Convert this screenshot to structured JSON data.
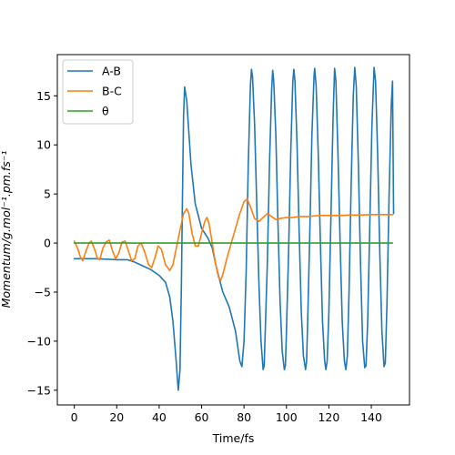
{
  "chart_data": {
    "type": "line",
    "title": "",
    "xlabel": "Time/fs",
    "ylabel": "Momentum/g.mol⁻¹.pm.fs⁻¹",
    "xlim": [
      -8,
      158
    ],
    "ylim": [
      -16.5,
      19.2
    ],
    "xticks": [
      0,
      20,
      40,
      60,
      80,
      100,
      120,
      140
    ],
    "yticks": [
      -15,
      -10,
      -5,
      0,
      5,
      10,
      15
    ],
    "grid": false,
    "legend_position": "top-left",
    "series": [
      {
        "name": "A-B",
        "color": "#1f77b4",
        "points": [
          [
            0,
            -1.6
          ],
          [
            5,
            -1.6
          ],
          [
            10,
            -1.6
          ],
          [
            15,
            -1.65
          ],
          [
            20,
            -1.7
          ],
          [
            25,
            -1.7
          ],
          [
            28,
            -1.9
          ],
          [
            32,
            -2.3
          ],
          [
            36,
            -2.7
          ],
          [
            40,
            -3.3
          ],
          [
            43,
            -4.0
          ],
          [
            45,
            -5.5
          ],
          [
            46.5,
            -8.0
          ],
          [
            48,
            -12.0
          ],
          [
            49,
            -15.0
          ],
          [
            49.8,
            -13.0
          ],
          [
            50.5,
            -4.0
          ],
          [
            51,
            5.0
          ],
          [
            51.5,
            13.0
          ],
          [
            52,
            15.9
          ],
          [
            53,
            14.5
          ],
          [
            55,
            8.0
          ],
          [
            57,
            4.0
          ],
          [
            60,
            1.5
          ],
          [
            63,
            0.5
          ],
          [
            65,
            -0.5
          ],
          [
            67,
            -2.5
          ],
          [
            70,
            -5.0
          ],
          [
            73,
            -6.5
          ],
          [
            76,
            -9.0
          ],
          [
            78,
            -12.0
          ],
          [
            79,
            -12.6
          ],
          [
            80,
            -10.0
          ],
          [
            81,
            -3.0
          ],
          [
            82,
            8.0
          ],
          [
            83,
            16.0
          ],
          [
            83.5,
            17.7
          ],
          [
            84,
            17.0
          ],
          [
            85,
            12.0
          ],
          [
            86,
            4.0
          ],
          [
            87,
            -4.0
          ],
          [
            88,
            -10.0
          ],
          [
            89,
            -12.9
          ],
          [
            89.5,
            -12.5
          ],
          [
            90,
            -9.0
          ],
          [
            91,
            -2.0
          ],
          [
            92,
            8.0
          ],
          [
            93,
            15.5
          ],
          [
            93.5,
            17.6
          ],
          [
            94,
            16.5
          ],
          [
            95,
            11.0
          ],
          [
            96,
            2.0
          ],
          [
            97,
            -6.0
          ],
          [
            98,
            -11.0
          ],
          [
            99,
            -12.9
          ],
          [
            99.5,
            -12.5
          ],
          [
            100,
            -9.0
          ],
          [
            101,
            -1.0
          ],
          [
            102,
            9.0
          ],
          [
            103,
            16.5
          ],
          [
            103.5,
            17.7
          ],
          [
            104,
            16.5
          ],
          [
            105,
            10.0
          ],
          [
            106,
            1.0
          ],
          [
            107,
            -7.0
          ],
          [
            108,
            -11.5
          ],
          [
            109,
            -12.9
          ],
          [
            109.5,
            -12.0
          ],
          [
            110,
            -8.0
          ],
          [
            111,
            1.0
          ],
          [
            112,
            11.0
          ],
          [
            113,
            17.0
          ],
          [
            113.3,
            17.8
          ],
          [
            114,
            16.0
          ],
          [
            115,
            9.0
          ],
          [
            116,
            0.0
          ],
          [
            117,
            -8.0
          ],
          [
            118,
            -12.0
          ],
          [
            118.6,
            -12.9
          ],
          [
            119.2,
            -12.0
          ],
          [
            120,
            -7.0
          ],
          [
            121,
            3.0
          ],
          [
            122,
            13.0
          ],
          [
            122.7,
            17.8
          ],
          [
            123.3,
            16.5
          ],
          [
            124.3,
            9.0
          ],
          [
            125.3,
            0.0
          ],
          [
            126.3,
            -8.0
          ],
          [
            127.3,
            -12.0
          ],
          [
            128,
            -12.9
          ],
          [
            128.7,
            -11.5
          ],
          [
            129.5,
            -5.0
          ],
          [
            130.5,
            6.0
          ],
          [
            131.5,
            15.0
          ],
          [
            132.2,
            17.9
          ],
          [
            132.9,
            16.0
          ],
          [
            133.9,
            8.0
          ],
          [
            134.9,
            -2.0
          ],
          [
            135.9,
            -10.0
          ],
          [
            136.9,
            -12.7
          ],
          [
            137.5,
            -12.5
          ],
          [
            138.3,
            -8.0
          ],
          [
            139.3,
            2.0
          ],
          [
            140.3,
            12.0
          ],
          [
            141.3,
            17.9
          ],
          [
            142,
            16.5
          ],
          [
            143,
            9.0
          ],
          [
            144,
            -1.0
          ],
          [
            145,
            -9.0
          ],
          [
            146,
            -12.6
          ],
          [
            146.6,
            -12.2
          ],
          [
            147.4,
            -6.0
          ],
          [
            148.4,
            5.0
          ],
          [
            149.4,
            14.0
          ],
          [
            150,
            16.5
          ],
          [
            150.5,
            3.0
          ]
        ]
      },
      {
        "name": "B-C",
        "color": "#ff7f0e",
        "points": [
          [
            0,
            0.2
          ],
          [
            1.5,
            -0.5
          ],
          [
            3,
            -1.5
          ],
          [
            4,
            -1.8
          ],
          [
            5.5,
            -0.8
          ],
          [
            7,
            0.0
          ],
          [
            8,
            0.2
          ],
          [
            9.5,
            -0.6
          ],
          [
            11,
            -1.6
          ],
          [
            12,
            -1.7
          ],
          [
            13.5,
            -0.5
          ],
          [
            15,
            0.1
          ],
          [
            16.5,
            0.3
          ],
          [
            18,
            -0.8
          ],
          [
            19.5,
            -1.6
          ],
          [
            21,
            -1.0
          ],
          [
            22.5,
            0.1
          ],
          [
            24,
            0.2
          ],
          [
            25.5,
            -0.8
          ],
          [
            27,
            -1.8
          ],
          [
            28.5,
            -1.6
          ],
          [
            30,
            -0.3
          ],
          [
            31.5,
            0.0
          ],
          [
            33,
            -0.8
          ],
          [
            35,
            -2.2
          ],
          [
            36.5,
            -2.5
          ],
          [
            38,
            -1.5
          ],
          [
            39.5,
            -0.3
          ],
          [
            41,
            -0.6
          ],
          [
            43,
            -2.2
          ],
          [
            45,
            -2.8
          ],
          [
            46.5,
            -2.2
          ],
          [
            48,
            -0.6
          ],
          [
            50,
            1.5
          ],
          [
            51.5,
            3.0
          ],
          [
            53,
            3.5
          ],
          [
            54,
            3.0
          ],
          [
            55.5,
            1.0
          ],
          [
            57,
            -0.3
          ],
          [
            58.5,
            -0.3
          ],
          [
            60,
            1.0
          ],
          [
            61.5,
            2.2
          ],
          [
            62.5,
            2.6
          ],
          [
            63.5,
            2.0
          ],
          [
            65,
            0.0
          ],
          [
            66.5,
            -2.0
          ],
          [
            68,
            -3.5
          ],
          [
            69,
            -3.8
          ],
          [
            70,
            -3.2
          ],
          [
            72,
            -1.5
          ],
          [
            74,
            0.0
          ],
          [
            76,
            1.5
          ],
          [
            78,
            3.0
          ],
          [
            80,
            4.2
          ],
          [
            81.5,
            4.5
          ],
          [
            83,
            3.7
          ],
          [
            85,
            2.5
          ],
          [
            87,
            2.2
          ],
          [
            89,
            2.6
          ],
          [
            91,
            3.0
          ],
          [
            93,
            2.7
          ],
          [
            95,
            2.4
          ],
          [
            97,
            2.5
          ],
          [
            100,
            2.6
          ],
          [
            103,
            2.6
          ],
          [
            106,
            2.7
          ],
          [
            110,
            2.7
          ],
          [
            115,
            2.8
          ],
          [
            120,
            2.8
          ],
          [
            125,
            2.8
          ],
          [
            130,
            2.85
          ],
          [
            135,
            2.85
          ],
          [
            140,
            2.9
          ],
          [
            145,
            2.9
          ],
          [
            150,
            2.9
          ]
        ]
      },
      {
        "name": "θ",
        "color": "#2ca02c",
        "points": [
          [
            0,
            0
          ],
          [
            150,
            0
          ]
        ]
      }
    ]
  }
}
